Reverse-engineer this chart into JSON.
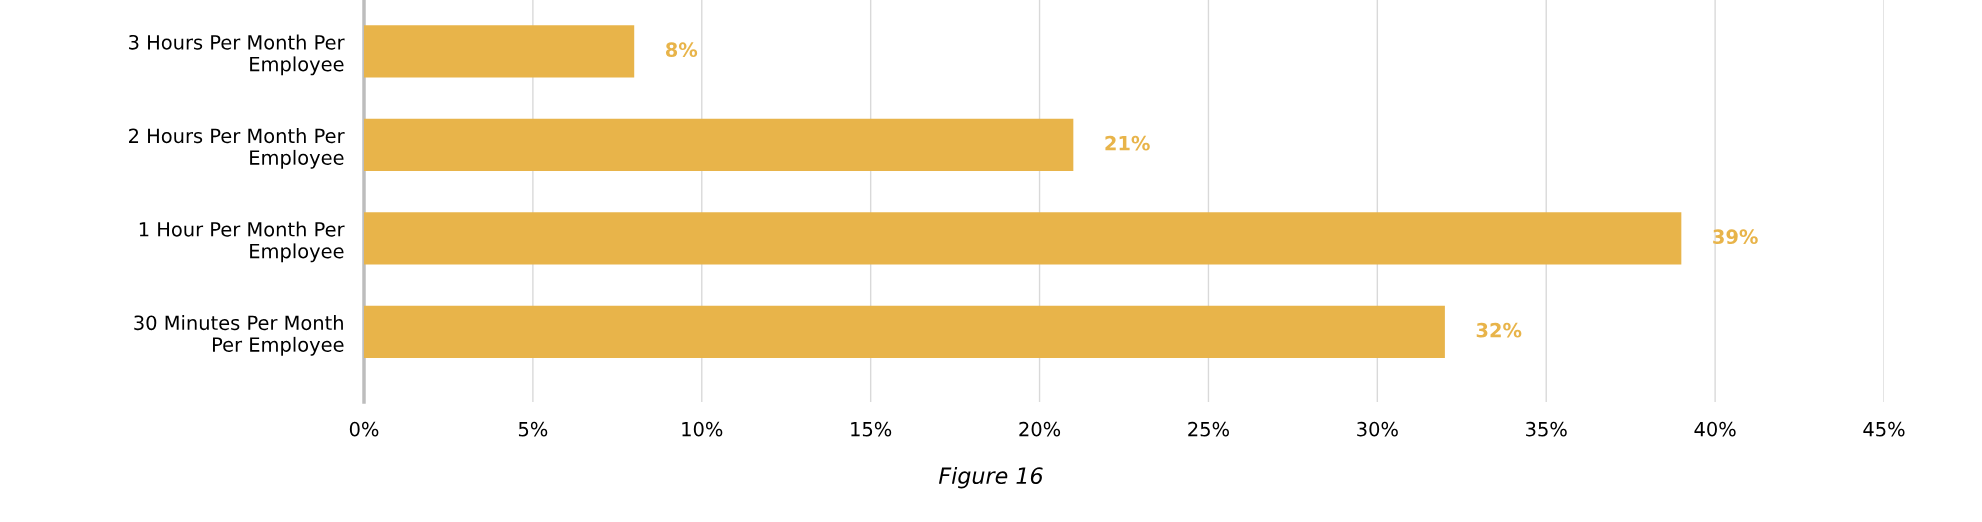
{
  "chart_data": {
    "type": "bar",
    "orientation": "horizontal",
    "categories": [
      "3 Hours Per Month Per\nEmployee",
      "2 Hours Per Month Per\nEmployee",
      "1 Hour Per Month Per\nEmployee",
      "30 Minutes Per Month\nPer Employee"
    ],
    "values": [
      8,
      21,
      39,
      32
    ],
    "color": "#e8b44a",
    "value_labels": [
      "8%",
      "21%",
      "39%",
      "32%"
    ],
    "xlim": [
      0,
      45
    ],
    "xticks": [
      {
        "value": 0,
        "label": "0%"
      },
      {
        "value": 5,
        "label": "5%"
      },
      {
        "value": 10,
        "label": "10%"
      },
      {
        "value": 15,
        "label": "15%"
      },
      {
        "value": 20,
        "label": "20%"
      },
      {
        "value": 25,
        "label": "25%"
      },
      {
        "value": 30,
        "label": "30%"
      },
      {
        "value": 35,
        "label": "35%"
      },
      {
        "value": 40,
        "label": "40%"
      },
      {
        "value": 45,
        "label": "45%"
      }
    ],
    "grid": "x",
    "legend": false,
    "annotations": [
      "Figure 16"
    ]
  }
}
